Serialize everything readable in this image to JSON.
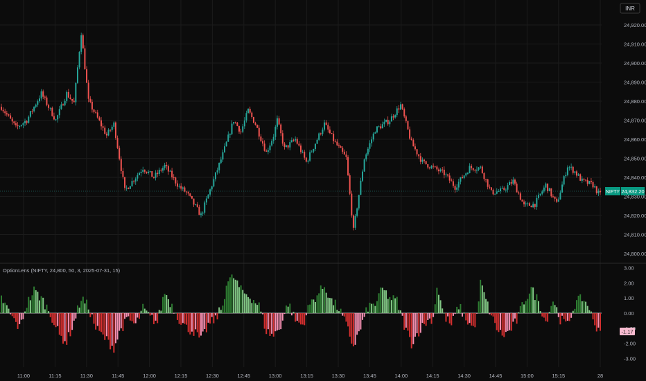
{
  "currency_button": "INR",
  "symbol_badge": "NIFTY",
  "last_price": "24,832.20",
  "indicator_title": "OptionLens (NIFTY, 24,800, 50, 3, 2025-07-31, 15)",
  "indicator_last": "-1.17",
  "colors": {
    "background": "#0c0c0c",
    "up": "#26a69a",
    "down": "#ef5350",
    "grid": "#1b1b1b",
    "badge": "#089981",
    "hist_up_strong": "#2e7d32",
    "hist_up_light": "#81c784",
    "hist_down_strong": "#d32f2f",
    "hist_down_light": "#f48fb1",
    "indicator_badge": "#f8bbd0"
  },
  "chart_data": [
    {
      "type": "candlestick",
      "price_axis_ticks": [
        "24,920.00",
        "24,910.00",
        "24,900.00",
        "24,890.00",
        "24,880.00",
        "24,870.00",
        "24,860.00",
        "24,850.00",
        "24,840.00",
        "24,830.00",
        "24,820.00",
        "24,810.00",
        "24,800.00"
      ],
      "ylim": [
        24800,
        24920
      ],
      "time_axis_ticks": [
        "11:00",
        "11:15",
        "11:30",
        "11:45",
        "12:00",
        "12:15",
        "12:30",
        "12:45",
        "13:00",
        "13:15",
        "13:30",
        "13:45",
        "14:00",
        "14:15",
        "14:30",
        "14:45",
        "15:00",
        "15:15",
        "28"
      ],
      "last_value": 24832.2,
      "path_anchors": [
        [
          0,
          24877
        ],
        [
          8,
          24866
        ],
        [
          14,
          24870
        ],
        [
          22,
          24884
        ],
        [
          30,
          24870
        ],
        [
          36,
          24884
        ],
        [
          40,
          24879
        ],
        [
          44,
          24916
        ],
        [
          48,
          24880
        ],
        [
          58,
          24862
        ],
        [
          62,
          24868
        ],
        [
          68,
          24833
        ],
        [
          78,
          24845
        ],
        [
          84,
          24840
        ],
        [
          90,
          24846
        ],
        [
          98,
          24835
        ],
        [
          102,
          24832
        ],
        [
          110,
          24820
        ],
        [
          116,
          24836
        ],
        [
          122,
          24852
        ],
        [
          128,
          24870
        ],
        [
          132,
          24864
        ],
        [
          136,
          24875
        ],
        [
          140,
          24868
        ],
        [
          146,
          24853
        ],
        [
          150,
          24862
        ],
        [
          152,
          24870
        ],
        [
          156,
          24855
        ],
        [
          162,
          24860
        ],
        [
          168,
          24848
        ],
        [
          178,
          24868
        ],
        [
          184,
          24858
        ],
        [
          190,
          24850
        ],
        [
          194,
          24812
        ],
        [
          200,
          24850
        ],
        [
          206,
          24865
        ],
        [
          214,
          24870
        ],
        [
          220,
          24878
        ],
        [
          226,
          24858
        ],
        [
          232,
          24848
        ],
        [
          238,
          24845
        ],
        [
          244,
          24842
        ],
        [
          250,
          24835
        ],
        [
          258,
          24845
        ],
        [
          264,
          24845
        ],
        [
          270,
          24832
        ],
        [
          276,
          24833
        ],
        [
          282,
          24838
        ],
        [
          288,
          24825
        ],
        [
          294,
          24826
        ],
        [
          300,
          24836
        ],
        [
          306,
          24826
        ],
        [
          312,
          24846
        ],
        [
          316,
          24843
        ],
        [
          320,
          24838
        ],
        [
          326,
          24836
        ],
        [
          330,
          24830
        ]
      ]
    },
    {
      "type": "bar",
      "yaxis_ticks": [
        "3.00",
        "2.00",
        "1.00",
        "0.00",
        "-1.00",
        "-2.00",
        "-3.00"
      ],
      "ylim": [
        -3.0,
        3.0
      ],
      "last_value": -1.17,
      "value_anchors": [
        [
          0,
          1.0
        ],
        [
          6,
          -0.3
        ],
        [
          10,
          -1.0
        ],
        [
          14,
          0.6
        ],
        [
          18,
          1.5
        ],
        [
          22,
          1.0
        ],
        [
          26,
          0.2
        ],
        [
          28,
          -0.3
        ],
        [
          32,
          -1.5
        ],
        [
          36,
          -1.9
        ],
        [
          40,
          -0.6
        ],
        [
          44,
          1.0
        ],
        [
          48,
          0.4
        ],
        [
          52,
          -1.0
        ],
        [
          58,
          -1.8
        ],
        [
          62,
          -2.3
        ],
        [
          66,
          -1.0
        ],
        [
          70,
          -0.4
        ],
        [
          74,
          -0.8
        ],
        [
          78,
          0.3
        ],
        [
          82,
          -0.3
        ],
        [
          86,
          -0.6
        ],
        [
          90,
          1.4
        ],
        [
          94,
          0.5
        ],
        [
          98,
          -0.4
        ],
        [
          102,
          -1.0
        ],
        [
          106,
          -1.2
        ],
        [
          110,
          -1.8
        ],
        [
          114,
          -0.8
        ],
        [
          118,
          -0.4
        ],
        [
          122,
          0.5
        ],
        [
          124,
          2.0
        ],
        [
          128,
          2.4
        ],
        [
          132,
          1.5
        ],
        [
          138,
          1.0
        ],
        [
          142,
          0.5
        ],
        [
          146,
          -1.2
        ],
        [
          150,
          -1.5
        ],
        [
          154,
          -0.8
        ],
        [
          158,
          0.7
        ],
        [
          162,
          -0.5
        ],
        [
          166,
          -0.8
        ],
        [
          170,
          0.6
        ],
        [
          174,
          1.2
        ],
        [
          178,
          1.8
        ],
        [
          182,
          0.8
        ],
        [
          186,
          0.3
        ],
        [
          190,
          -0.8
        ],
        [
          194,
          -2.2
        ],
        [
          198,
          -1.0
        ],
        [
          202,
          0.4
        ],
        [
          206,
          0.6
        ],
        [
          210,
          1.6
        ],
        [
          214,
          1.0
        ],
        [
          218,
          0.8
        ],
        [
          222,
          -0.8
        ],
        [
          226,
          -2.0
        ],
        [
          230,
          -1.2
        ],
        [
          234,
          -0.6
        ],
        [
          238,
          -0.3
        ],
        [
          240,
          1.8
        ],
        [
          244,
          -0.2
        ],
        [
          248,
          -0.8
        ],
        [
          252,
          0.5
        ],
        [
          256,
          -0.4
        ],
        [
          260,
          -1.0
        ],
        [
          262,
          -0.3
        ],
        [
          264,
          2.0
        ],
        [
          268,
          0.5
        ],
        [
          272,
          -0.8
        ],
        [
          276,
          -1.5
        ],
        [
          280,
          -1.2
        ],
        [
          284,
          -0.5
        ],
        [
          288,
          0.8
        ],
        [
          292,
          1.6
        ],
        [
          296,
          0.8
        ],
        [
          300,
          -0.6
        ],
        [
          304,
          0.9
        ],
        [
          308,
          -0.4
        ],
        [
          312,
          -0.8
        ],
        [
          316,
          0.6
        ],
        [
          320,
          1.0
        ],
        [
          324,
          0.4
        ],
        [
          326,
          -0.6
        ],
        [
          330,
          -1.17
        ]
      ]
    }
  ]
}
